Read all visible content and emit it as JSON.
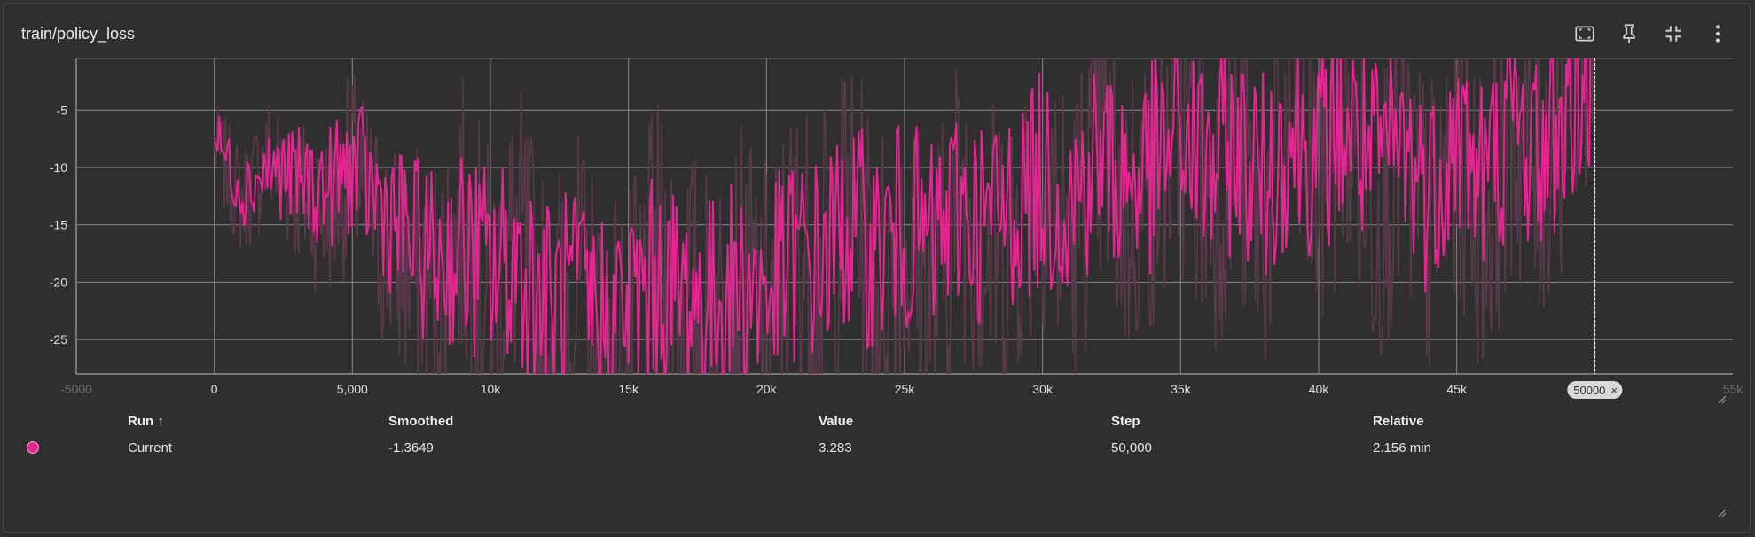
{
  "header": {
    "title": "train/policy_loss"
  },
  "toolbar": {
    "icons": [
      "fit-domain-icon",
      "pin-icon",
      "collapse-icon",
      "more-vert-icon"
    ]
  },
  "chart_data": {
    "type": "line",
    "title": "train/policy_loss",
    "xlabel": "",
    "ylabel": "",
    "xlim": [
      -5000,
      55000
    ],
    "ylim": [
      -28,
      -0.5
    ],
    "x_ticks": [
      -5000,
      0,
      5000,
      10000,
      15000,
      20000,
      25000,
      30000,
      35000,
      40000,
      45000,
      50000,
      55000
    ],
    "x_tick_labels": [
      "-5000",
      "0",
      "5,000",
      "10k",
      "15k",
      "20k",
      "25k",
      "30k",
      "35k",
      "40k",
      "45k",
      "",
      "55k"
    ],
    "y_ticks": [
      -25,
      -20,
      -15,
      -10,
      -5
    ],
    "y_tick_labels": [
      "-25",
      "-20",
      "-15",
      "-10",
      "-5"
    ],
    "grid": true,
    "cursor_step": 50000,
    "cursor_label": "50000",
    "colors": {
      "smoothed": "#e52592",
      "raw": "#5a3a4a",
      "background": "#2f2f2f",
      "grid": "#8a8a8a"
    },
    "series": [
      {
        "kind": "raw",
        "x": [
          0,
          1000,
          2000,
          3000,
          4000,
          5000,
          6000,
          7000,
          8000,
          9000,
          10000,
          11000,
          12000,
          13000,
          14000,
          15000,
          16000,
          17000,
          18000,
          19000,
          20000,
          21000,
          22000,
          23000,
          24000,
          25000,
          26000,
          27000,
          28000,
          29000,
          30000,
          31000,
          32000,
          33000,
          34000,
          35000,
          36000,
          37000,
          38000,
          39000,
          40000,
          41000,
          42000,
          43000,
          44000,
          45000,
          46000,
          47000,
          48000,
          49000,
          50000
        ],
        "y": [
          -8,
          -13,
          -9,
          -12,
          -14,
          -10,
          -16,
          -19,
          -20,
          -15,
          -22,
          -16,
          -25,
          -20,
          -24,
          -26,
          -18,
          -21,
          -24,
          -20,
          -23,
          -17,
          -19,
          -13,
          -20,
          -16,
          -22,
          -12,
          -18,
          -15,
          -10,
          -17,
          -8,
          -14,
          -11,
          -6,
          -13,
          -9,
          -15,
          -7,
          -12,
          -5,
          -14,
          -9,
          -16,
          -8,
          -15,
          -6,
          -11,
          -4,
          3.283
        ]
      },
      {
        "kind": "smoothed",
        "x": [
          0,
          1000,
          2000,
          3000,
          4000,
          5000,
          6000,
          7000,
          8000,
          9000,
          10000,
          11000,
          12000,
          13000,
          14000,
          15000,
          16000,
          17000,
          18000,
          19000,
          20000,
          21000,
          22000,
          23000,
          24000,
          25000,
          26000,
          27000,
          28000,
          29000,
          30000,
          31000,
          32000,
          33000,
          34000,
          35000,
          36000,
          37000,
          38000,
          39000,
          40000,
          41000,
          42000,
          43000,
          44000,
          45000,
          46000,
          47000,
          48000,
          49000,
          50000
        ],
        "y": [
          -7,
          -12,
          -10,
          -11,
          -12,
          -10,
          -13,
          -16,
          -18,
          -17,
          -19,
          -18,
          -22,
          -21,
          -23,
          -22,
          -20,
          -21,
          -22,
          -20,
          -21,
          -18,
          -18,
          -15,
          -17,
          -15,
          -17,
          -13,
          -15,
          -13,
          -11,
          -13,
          -9,
          -11,
          -10,
          -7,
          -10,
          -8,
          -11,
          -7,
          -9,
          -6,
          -10,
          -8,
          -12,
          -7,
          -11,
          -6,
          -9,
          -5,
          -1.3649
        ]
      }
    ]
  },
  "table": {
    "headers": {
      "run": "Run ↑",
      "smoothed": "Smoothed",
      "value": "Value",
      "step": "Step",
      "relative": "Relative"
    },
    "rows": [
      {
        "run": "Current",
        "smoothed": "-1.3649",
        "value": "3.283",
        "step": "50,000",
        "relative": "2.156 min",
        "color": "#e52592"
      }
    ]
  }
}
